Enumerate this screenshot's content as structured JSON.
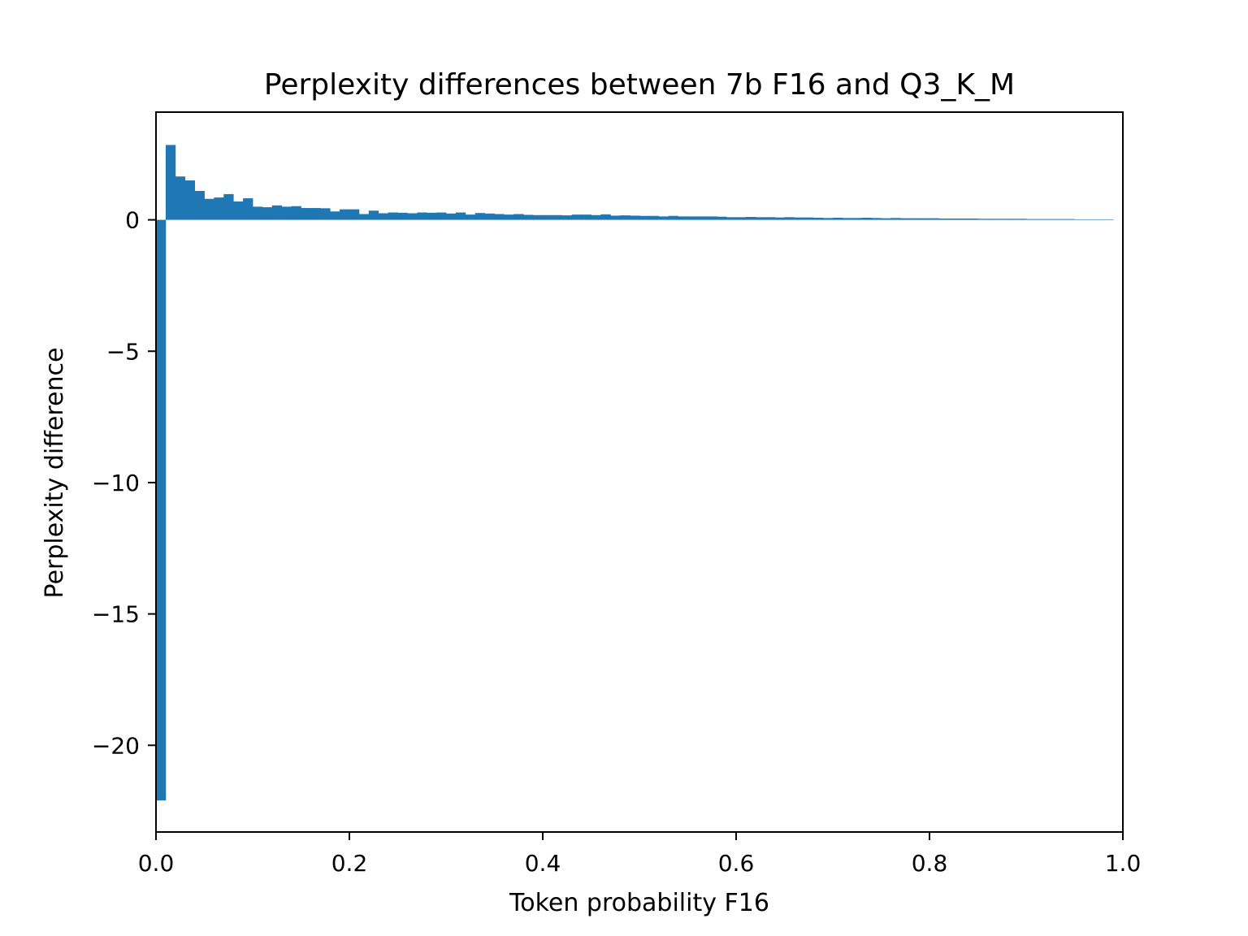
{
  "chart_data": {
    "type": "bar",
    "title": "Perplexity differences between 7b F16 and Q3_K_M",
    "xlabel": "Token probability F16",
    "ylabel": "Perplexity difference",
    "xlim": [
      0.0,
      1.0
    ],
    "ylim": [
      -23.3,
      4.1
    ],
    "grid": false,
    "bar_color": "#1f77b4",
    "bin_width": 0.01,
    "x_ticks": [
      {
        "value": 0.0,
        "label": "0.0"
      },
      {
        "value": 0.2,
        "label": "0.2"
      },
      {
        "value": 0.4,
        "label": "0.4"
      },
      {
        "value": 0.6,
        "label": "0.6"
      },
      {
        "value": 0.8,
        "label": "0.8"
      },
      {
        "value": 1.0,
        "label": "1.0"
      }
    ],
    "y_ticks": [
      {
        "value": 0,
        "label": "0"
      },
      {
        "value": -5,
        "label": "−5"
      },
      {
        "value": -10,
        "label": "−10"
      },
      {
        "value": -15,
        "label": "−15"
      },
      {
        "value": -20,
        "label": "−20"
      }
    ],
    "x": [
      0.0,
      0.01,
      0.02,
      0.03,
      0.04,
      0.05,
      0.06,
      0.07,
      0.08,
      0.09,
      0.1,
      0.11,
      0.12,
      0.13,
      0.14,
      0.15,
      0.16,
      0.17,
      0.18,
      0.19,
      0.2,
      0.21,
      0.22,
      0.23,
      0.24,
      0.25,
      0.26,
      0.27,
      0.28,
      0.29,
      0.3,
      0.31,
      0.32,
      0.33,
      0.34,
      0.35,
      0.36,
      0.37,
      0.38,
      0.39,
      0.4,
      0.41,
      0.42,
      0.43,
      0.44,
      0.45,
      0.46,
      0.47,
      0.48,
      0.49,
      0.5,
      0.51,
      0.52,
      0.53,
      0.54,
      0.55,
      0.56,
      0.57,
      0.58,
      0.59,
      0.6,
      0.61,
      0.62,
      0.63,
      0.64,
      0.65,
      0.66,
      0.67,
      0.68,
      0.69,
      0.7,
      0.71,
      0.72,
      0.73,
      0.74,
      0.75,
      0.76,
      0.77,
      0.78,
      0.79,
      0.8,
      0.81,
      0.82,
      0.83,
      0.84,
      0.85,
      0.86,
      0.87,
      0.88,
      0.89,
      0.9,
      0.91,
      0.92,
      0.93,
      0.94,
      0.95,
      0.96,
      0.97,
      0.98
    ],
    "values": [
      -22.1,
      2.85,
      1.65,
      1.5,
      1.1,
      0.8,
      0.85,
      0.98,
      0.7,
      0.82,
      0.5,
      0.48,
      0.55,
      0.5,
      0.52,
      0.45,
      0.45,
      0.44,
      0.32,
      0.4,
      0.4,
      0.22,
      0.35,
      0.25,
      0.28,
      0.27,
      0.25,
      0.28,
      0.27,
      0.28,
      0.24,
      0.28,
      0.2,
      0.26,
      0.24,
      0.22,
      0.2,
      0.22,
      0.19,
      0.18,
      0.18,
      0.18,
      0.17,
      0.2,
      0.2,
      0.18,
      0.21,
      0.16,
      0.17,
      0.16,
      0.15,
      0.15,
      0.13,
      0.15,
      0.13,
      0.13,
      0.13,
      0.13,
      0.12,
      0.1,
      0.1,
      0.11,
      0.1,
      0.1,
      0.09,
      0.1,
      0.09,
      0.09,
      0.08,
      0.07,
      0.08,
      0.07,
      0.07,
      0.08,
      0.07,
      0.06,
      0.07,
      0.06,
      0.06,
      0.06,
      0.06,
      0.05,
      0.05,
      0.05,
      0.05,
      0.04,
      0.04,
      0.04,
      0.04,
      0.04,
      0.03,
      0.03,
      0.03,
      0.03,
      0.03,
      0.02,
      0.02,
      0.02,
      0.02
    ]
  }
}
